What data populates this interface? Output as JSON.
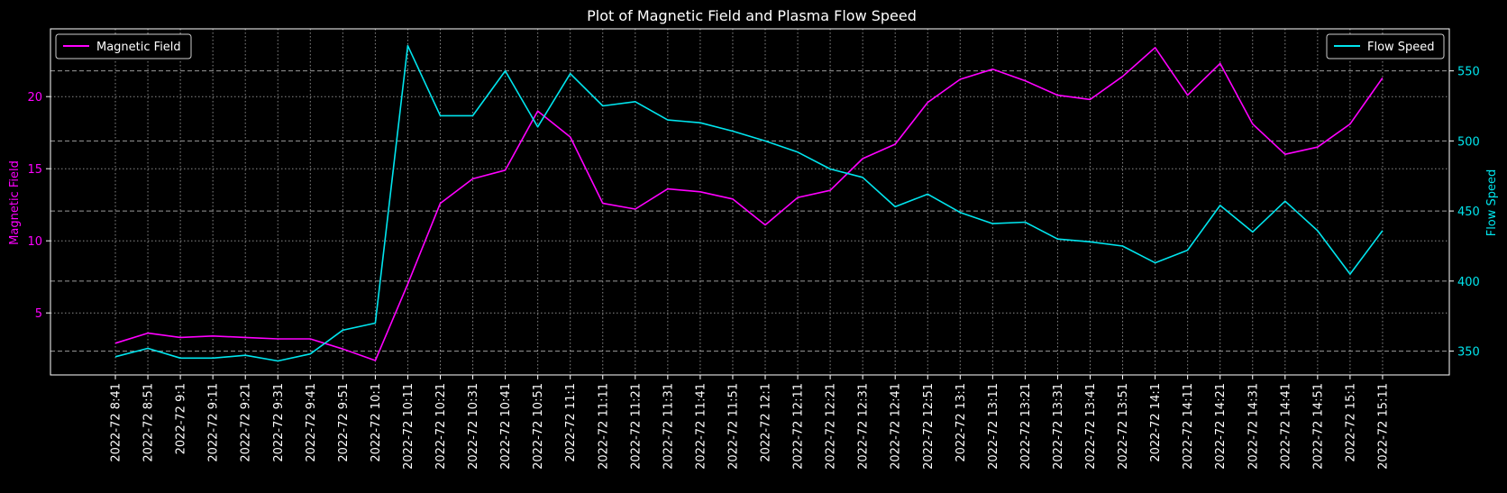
{
  "chart_data": {
    "type": "line",
    "title": "Plot of Magnetic Field and Plasma Flow Speed",
    "categories": [
      "2022-72  8:41",
      "2022-72  8:51",
      "2022-72  9:1",
      "2022-72  9:11",
      "2022-72  9:21",
      "2022-72  9:31",
      "2022-72  9:41",
      "2022-72  9:51",
      "2022-72  10:1",
      "2022-72  10:11",
      "2022-72  10:21",
      "2022-72  10:31",
      "2022-72  10:41",
      "2022-72  10:51",
      "2022-72  11:1",
      "2022-72  11:11",
      "2022-72  11:21",
      "2022-72  11:31",
      "2022-72  11:41",
      "2022-72  11:51",
      "2022-72  12:1",
      "2022-72  12:11",
      "2022-72  12:21",
      "2022-72  12:31",
      "2022-72  12:41",
      "2022-72  12:51",
      "2022-72  13:1",
      "2022-72  13:11",
      "2022-72  13:21",
      "2022-72  13:31",
      "2022-72  13:41",
      "2022-72  13:51",
      "2022-72  14:1",
      "2022-72  14:11",
      "2022-72  14:21",
      "2022-72  14:31",
      "2022-72  14:41",
      "2022-72  14:51",
      "2022-72  15:1",
      "2022-72  15:11"
    ],
    "left_axis": {
      "label": "Magnetic Field",
      "color": "#ff00ff",
      "ylim": [
        0.7,
        24.7
      ],
      "ticks": [
        "5",
        "10",
        "15",
        "20"
      ]
    },
    "right_axis": {
      "label": "Flow Speed",
      "color": "#00e5ee",
      "ylim": [
        333,
        580
      ],
      "ticks": [
        "350",
        "400",
        "450",
        "500",
        "550"
      ]
    },
    "series": [
      {
        "name": "Magnetic Field",
        "axis": "left",
        "color": "#ff00ff",
        "values": [
          2.9,
          3.6,
          3.3,
          3.4,
          3.3,
          3.2,
          3.2,
          2.5,
          1.7,
          7.0,
          12.6,
          14.3,
          14.9,
          19.0,
          17.2,
          12.6,
          12.2,
          13.6,
          13.4,
          12.9,
          11.1,
          13.0,
          13.5,
          15.7,
          16.7,
          19.6,
          21.2,
          21.9,
          21.1,
          20.1,
          19.8,
          21.4,
          23.4,
          20.1,
          22.3,
          18.1,
          16.0,
          16.5,
          18.1,
          21.3
        ]
      },
      {
        "name": "Flow Speed",
        "axis": "right",
        "color": "#00e5ee",
        "values": [
          346,
          352,
          345,
          345,
          347,
          343,
          348,
          365,
          370,
          568,
          518,
          518,
          550,
          510,
          548,
          525,
          528,
          515,
          513,
          507,
          500,
          492,
          480,
          474,
          453,
          462,
          449,
          441,
          442,
          430,
          428,
          425,
          413,
          422,
          454,
          435,
          457,
          436,
          405,
          436
        ]
      }
    ],
    "grid": true,
    "legend_left": "top-left",
    "legend_right": "top-right"
  }
}
